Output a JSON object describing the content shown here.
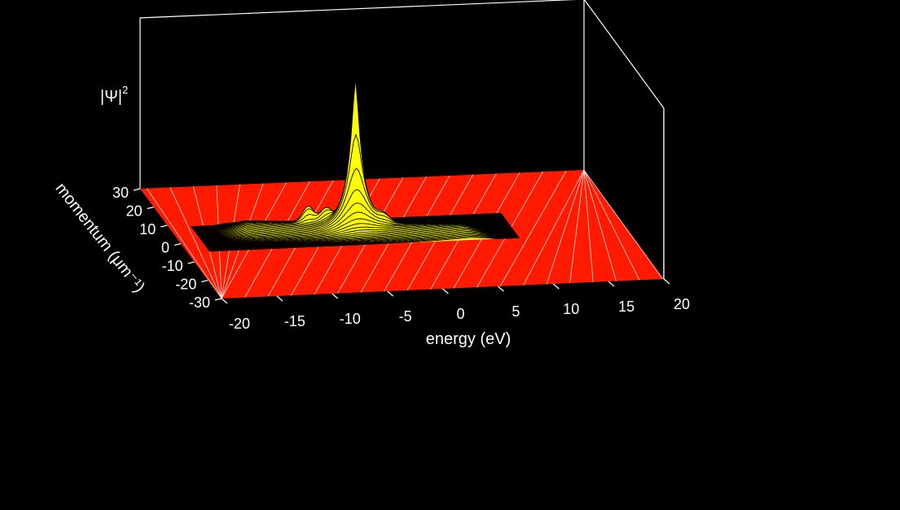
{
  "chart_data": {
    "type": "surface3d",
    "zlabel": "|Ψ|",
    "zlabel_superscript": "2",
    "xlabel": "energy (eV)",
    "ylabel": "momentum (μm⁻¹)",
    "x_ticks": [
      {
        "value": -20,
        "label": "-20"
      },
      {
        "value": -15,
        "label": "-15"
      },
      {
        "value": -10,
        "label": "-10"
      },
      {
        "value": -5,
        "label": "-5"
      },
      {
        "value": 0,
        "label": "0"
      },
      {
        "value": 5,
        "label": "5"
      },
      {
        "value": 10,
        "label": "10"
      },
      {
        "value": 15,
        "label": "15"
      },
      {
        "value": 20,
        "label": "20"
      }
    ],
    "y_ticks": [
      {
        "value": 30,
        "label": "30"
      },
      {
        "value": 20,
        "label": "20"
      },
      {
        "value": 10,
        "label": "10"
      },
      {
        "value": 0,
        "label": "0"
      },
      {
        "value": -10,
        "label": "-10"
      },
      {
        "value": -20,
        "label": "-20"
      },
      {
        "value": -30,
        "label": "-30"
      }
    ],
    "xlim": [
      -20,
      20
    ],
    "ylim": [
      -30,
      30
    ],
    "zlim": [
      0,
      1
    ],
    "surface": {
      "ridge_x_range": [
        -16,
        8
      ],
      "ridge_slope": 0.55,
      "peak": {
        "x": -4,
        "y": 2,
        "z": 1.0
      },
      "shoulder_peaks": [
        {
          "x": -8,
          "y": 4,
          "z": 0.14
        },
        {
          "x": -6.5,
          "y": 3.5,
          "z": 0.12
        },
        {
          "x": -1.5,
          "y": 1.5,
          "z": 0.09
        }
      ],
      "floor_color": "#ff1a00",
      "ridge_color": "#ffff00",
      "contour_color": "#000000",
      "mesh_line_color": "#ffffff"
    },
    "colors": {
      "background": "#000000",
      "box": "#ffffff",
      "text": "#ffffff"
    }
  }
}
